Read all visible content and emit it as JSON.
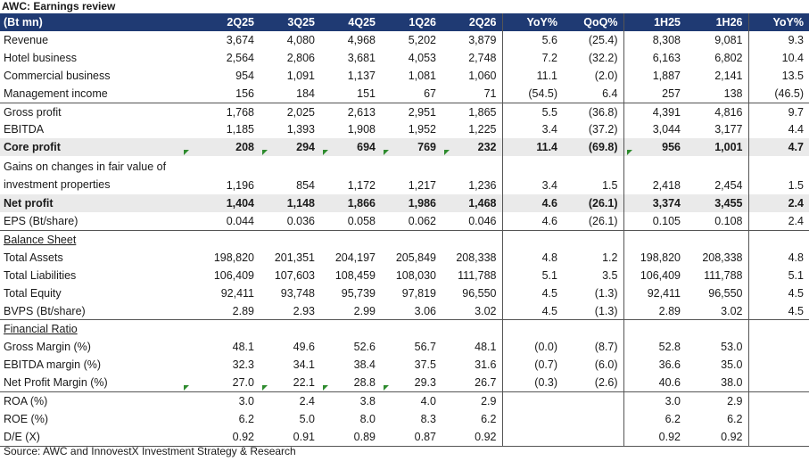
{
  "title": "AWC: Earnings review",
  "columns": [
    "(Bt mn)",
    "2Q25",
    "3Q25",
    "4Q25",
    "1Q26",
    "2Q26",
    "YoY%",
    "QoQ%",
    "1H25",
    "1H26",
    "YoY%"
  ],
  "rows": [
    {
      "label": "Revenue",
      "values": [
        "3,674",
        "4,080",
        "4,968",
        "5,202",
        "3,879",
        "5.6",
        "(25.4)",
        "8,308",
        "9,081",
        "9.3"
      ]
    },
    {
      "label": "Hotel business",
      "values": [
        "2,564",
        "2,806",
        "3,681",
        "4,053",
        "2,748",
        "7.2",
        "(32.2)",
        "6,163",
        "6,802",
        "10.4"
      ]
    },
    {
      "label": "Commercial business",
      "values": [
        "954",
        "1,091",
        "1,137",
        "1,081",
        "1,060",
        "11.1",
        "(2.0)",
        "1,887",
        "2,141",
        "13.5"
      ]
    },
    {
      "label": "Management income",
      "values": [
        "156",
        "184",
        "151",
        "67",
        "71",
        "(54.5)",
        "6.4",
        "257",
        "138",
        "(46.5)"
      ]
    },
    {
      "label": "Gross profit",
      "values": [
        "1,768",
        "2,025",
        "2,613",
        "2,951",
        "1,865",
        "5.5",
        "(36.8)",
        "4,391",
        "4,816",
        "9.7"
      ]
    },
    {
      "label": "EBITDA",
      "values": [
        "1,185",
        "1,393",
        "1,908",
        "1,952",
        "1,225",
        "3.4",
        "(37.2)",
        "3,044",
        "3,177",
        "4.4"
      ]
    },
    {
      "label": "Core profit",
      "values": [
        "208",
        "294",
        "694",
        "769",
        "232",
        "11.4",
        "(69.8)",
        "956",
        "1,001",
        "4.7"
      ]
    },
    {
      "label": "Gains on changes in fair value of investment properties",
      "values": [
        "1,196",
        "854",
        "1,172",
        "1,217",
        "1,236",
        "3.4",
        "1.5",
        "2,418",
        "2,454",
        "1.5"
      ]
    },
    {
      "label": "Net profit",
      "values": [
        "1,404",
        "1,148",
        "1,866",
        "1,986",
        "1,468",
        "4.6",
        "(26.1)",
        "3,374",
        "3,455",
        "2.4"
      ]
    },
    {
      "label": "EPS (Bt/share)",
      "values": [
        "0.044",
        "0.036",
        "0.058",
        "0.062",
        "0.046",
        "4.6",
        "(26.1)",
        "0.105",
        "0.108",
        "2.4"
      ]
    },
    {
      "label": "Balance Sheet",
      "values": [
        "",
        "",
        "",
        "",
        "",
        "",
        "",
        "",
        "",
        ""
      ]
    },
    {
      "label": "Total Assets",
      "values": [
        "198,820",
        "201,351",
        "204,197",
        "205,849",
        "208,338",
        "4.8",
        "1.2",
        "198,820",
        "208,338",
        "4.8"
      ]
    },
    {
      "label": "Total Liabilities",
      "values": [
        "106,409",
        "107,603",
        "108,459",
        "108,030",
        "111,788",
        "5.1",
        "3.5",
        "106,409",
        "111,788",
        "5.1"
      ]
    },
    {
      "label": "Total Equity",
      "values": [
        "92,411",
        "93,748",
        "95,739",
        "97,819",
        "96,550",
        "4.5",
        "(1.3)",
        "92,411",
        "96,550",
        "4.5"
      ]
    },
    {
      "label": "BVPS (Bt/share)",
      "values": [
        "2.89",
        "2.93",
        "2.99",
        "3.06",
        "3.02",
        "4.5",
        "(1.3)",
        "2.89",
        "3.02",
        "4.5"
      ]
    },
    {
      "label": "Financial Ratio",
      "values": [
        "",
        "",
        "",
        "",
        "",
        "",
        "",
        "",
        "",
        ""
      ]
    },
    {
      "label": "Gross Margin (%)",
      "values": [
        "48.1",
        "49.6",
        "52.6",
        "56.7",
        "48.1",
        "(0.0)",
        "(8.7)",
        "52.8",
        "53.0",
        ""
      ]
    },
    {
      "label": "EBITDA margin (%)",
      "values": [
        "32.3",
        "34.1",
        "38.4",
        "37.5",
        "31.6",
        "(0.7)",
        "(6.0)",
        "36.6",
        "35.0",
        ""
      ]
    },
    {
      "label": "Net Profit Margin (%)",
      "values": [
        "27.0",
        "22.1",
        "28.8",
        "29.3",
        "26.7",
        "(0.3)",
        "(2.6)",
        "40.6",
        "38.0",
        ""
      ]
    },
    {
      "label": "ROA (%)",
      "values": [
        "3.0",
        "2.4",
        "3.8",
        "4.0",
        "2.9",
        "",
        "",
        "3.0",
        "2.9",
        ""
      ]
    },
    {
      "label": "ROE (%)",
      "values": [
        "6.2",
        "5.0",
        "8.0",
        "8.3",
        "6.2",
        "",
        "",
        "6.2",
        "6.2",
        ""
      ]
    },
    {
      "label": "D/E (X)",
      "values": [
        "0.92",
        "0.91",
        "0.89",
        "0.87",
        "0.92",
        "",
        "",
        "0.92",
        "0.92",
        ""
      ]
    }
  ],
  "source": "Source: AWC and InnovestX Investment Strategy & Research",
  "colors": {
    "header_bg": "#1f3a73",
    "highlight_bg": "#eaeaea",
    "marker": "#2e8b2e"
  }
}
